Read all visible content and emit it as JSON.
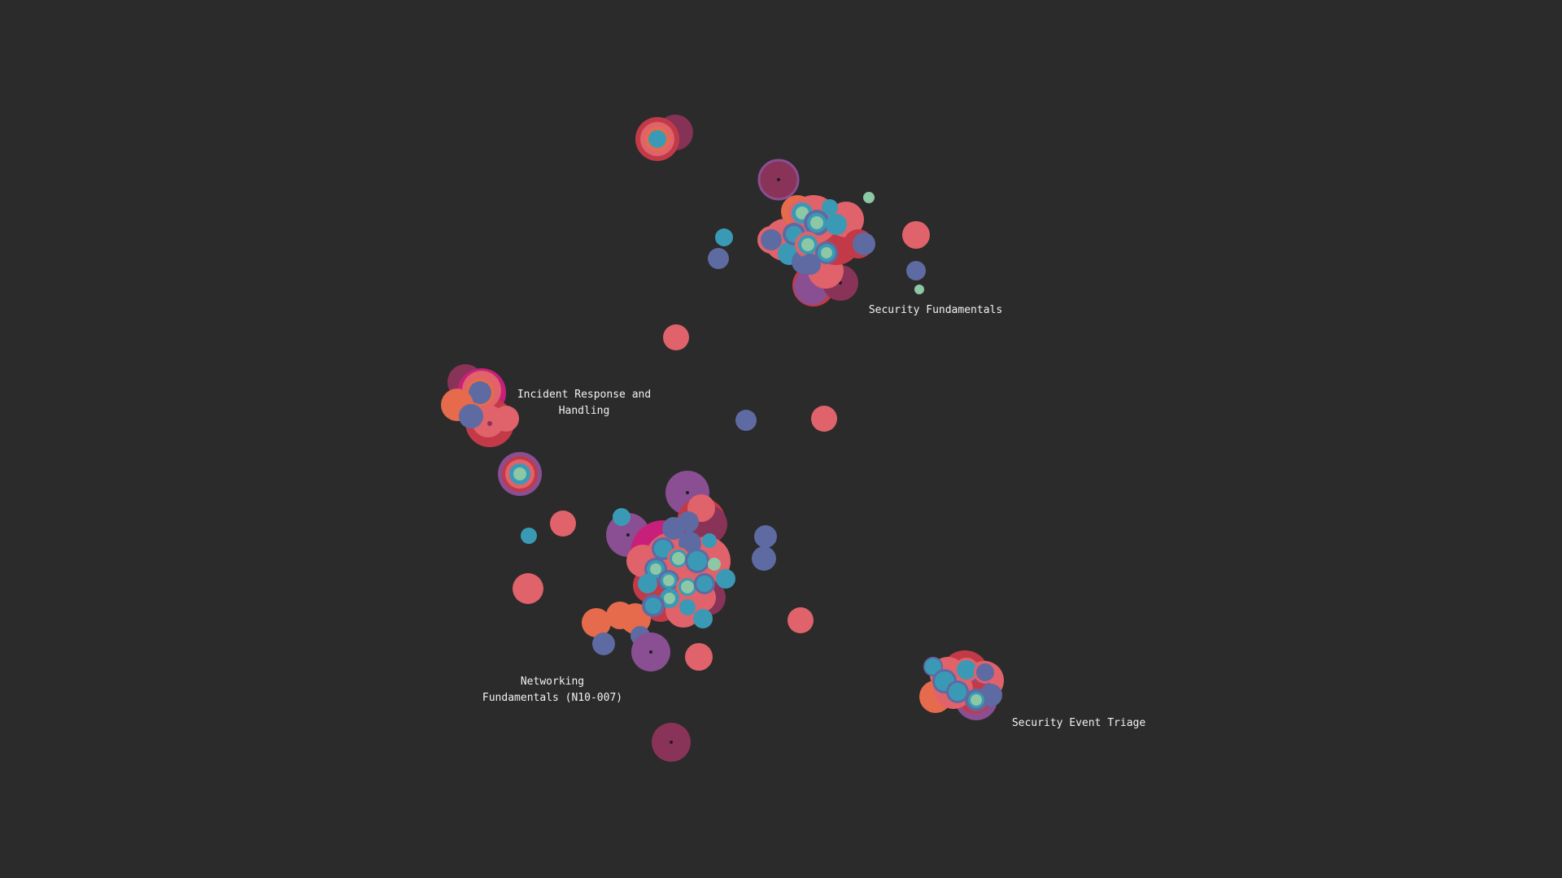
{
  "palette": {
    "background": "#2b2b2b",
    "coral": "#e0626a",
    "crimson": "#c23a48",
    "maroon": "#8a3358",
    "purple": "#8a4e92",
    "magenta": "#c8207a",
    "orange": "#e66a4c",
    "slate_blue": "#5e6aa2",
    "teal": "#3a9ab5",
    "mint": "#8cc7a6",
    "label": "#f2f2f2"
  },
  "clusters": [
    {
      "id": "security-fundamentals",
      "label": "Security Fundamentals"
    },
    {
      "id": "incident-response",
      "label": "Incident Response and\nHandling"
    },
    {
      "id": "networking-fundamentals",
      "label": "Networking\nFundamentals (N10-007)"
    },
    {
      "id": "security-event-triage",
      "label": "Security Event Triage"
    }
  ]
}
